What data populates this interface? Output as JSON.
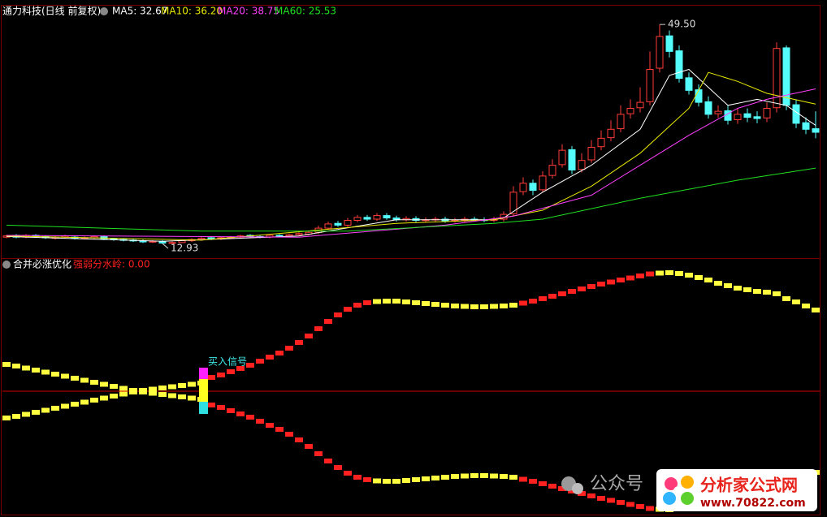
{
  "chart_data": [
    {
      "type": "candlestick",
      "title": "通力科技(日线 前复权)",
      "xlim": [
        -0.5,
        83.5
      ],
      "ylim": [
        10.5,
        52.5
      ],
      "up_color": "#ff3c3c",
      "down_color": "#54fcfc",
      "open": [
        14.0,
        14.3,
        14.0,
        14.3,
        14.1,
        13.8,
        14.0,
        14.0,
        13.8,
        13.9,
        14.1,
        13.7,
        13.6,
        13.5,
        13.4,
        13.2,
        13.3,
        13.0,
        13.1,
        13.4,
        13.6,
        13.9,
        13.7,
        13.9,
        14.0,
        14.3,
        14.1,
        14.0,
        14.3,
        14.2,
        14.4,
        14.5,
        14.8,
        15.5,
        16.3,
        16.0,
        16.8,
        17.3,
        17.0,
        17.6,
        17.2,
        16.9,
        17.1,
        16.8,
        16.9,
        17.0,
        16.7,
        16.8,
        17.0,
        16.9,
        16.8,
        17.0,
        17.9,
        21.6,
        23.0,
        21.9,
        24.3,
        26.1,
        28.6,
        25.3,
        26.9,
        29.1,
        30.6,
        32.1,
        34.6,
        35.6,
        36.6,
        42.2,
        47.6,
        45.1,
        40.6,
        38.6,
        36.6,
        34.6,
        35.1,
        33.6,
        34.6,
        34.1,
        33.9,
        35.6,
        45.6,
        36.1,
        33.1,
        32.1
      ],
      "high": [
        14.4,
        14.5,
        14.5,
        14.5,
        14.3,
        14.2,
        14.4,
        14.2,
        14.1,
        14.3,
        14.3,
        13.9,
        13.8,
        13.7,
        13.6,
        13.5,
        13.5,
        13.3,
        13.6,
        13.8,
        14.0,
        14.1,
        14.1,
        14.2,
        14.4,
        14.5,
        14.3,
        14.5,
        14.5,
        14.6,
        14.8,
        15.0,
        15.9,
        16.6,
        16.7,
        17.2,
        17.7,
        17.7,
        18.0,
        18.0,
        17.6,
        17.5,
        17.5,
        17.3,
        17.4,
        17.4,
        17.2,
        17.4,
        17.4,
        17.3,
        17.4,
        18.3,
        22.5,
        24.0,
        23.6,
        25.0,
        27.0,
        29.5,
        29.2,
        28.0,
        30.2,
        31.8,
        33.5,
        36.0,
        37.0,
        39.0,
        45.0,
        49.5,
        48.5,
        46.0,
        41.5,
        39.5,
        37.5,
        36.0,
        36.0,
        35.5,
        35.5,
        35.0,
        36.5,
        46.5,
        46.0,
        37.0,
        34.0,
        35.0
      ],
      "low": [
        13.8,
        13.8,
        13.8,
        13.9,
        13.7,
        13.6,
        13.8,
        13.6,
        13.6,
        13.7,
        13.5,
        13.4,
        13.3,
        13.2,
        13.0,
        13.0,
        12.93,
        12.95,
        13.0,
        13.2,
        13.4,
        13.5,
        13.5,
        13.7,
        13.8,
        13.9,
        13.8,
        13.8,
        14.0,
        14.0,
        14.2,
        14.3,
        14.5,
        15.2,
        15.7,
        15.7,
        16.5,
        16.7,
        16.7,
        16.9,
        16.6,
        16.6,
        16.5,
        16.5,
        16.6,
        16.4,
        16.4,
        16.5,
        16.6,
        16.5,
        16.5,
        16.6,
        17.5,
        21.0,
        21.0,
        21.5,
        23.8,
        25.6,
        24.5,
        24.8,
        26.4,
        28.5,
        30.0,
        31.5,
        33.8,
        34.8,
        36.0,
        41.5,
        44.0,
        39.8,
        37.8,
        35.8,
        33.8,
        33.9,
        32.8,
        32.9,
        33.2,
        33.0,
        33.2,
        34.8,
        35.2,
        32.2,
        31.2,
        30.5
      ],
      "close": [
        14.2,
        14.0,
        14.3,
        14.1,
        13.9,
        14.0,
        14.2,
        13.8,
        13.9,
        14.1,
        13.7,
        13.6,
        13.5,
        13.4,
        13.2,
        13.3,
        13.0,
        13.1,
        13.4,
        13.6,
        13.8,
        13.7,
        13.9,
        14.0,
        14.2,
        14.1,
        14.0,
        14.3,
        14.2,
        14.4,
        14.6,
        14.8,
        15.5,
        16.2,
        16.0,
        16.8,
        17.3,
        17.0,
        17.6,
        17.2,
        16.9,
        17.1,
        16.8,
        16.9,
        17.0,
        16.7,
        16.8,
        17.0,
        16.9,
        16.8,
        17.0,
        17.8,
        21.5,
        23.0,
        21.8,
        24.2,
        26.0,
        28.5,
        25.2,
        26.8,
        29.0,
        30.5,
        32.0,
        34.5,
        35.5,
        36.5,
        42.0,
        47.5,
        45.0,
        40.5,
        38.5,
        36.5,
        34.5,
        35.0,
        33.5,
        34.5,
        34.0,
        33.8,
        35.5,
        45.5,
        36.0,
        33.0,
        32.0,
        31.5
      ],
      "series": [
        {
          "legend_label": "MA5: 32.67",
          "color": "#ffffff",
          "x": [
            0,
            16,
            30,
            40,
            50,
            51,
            55,
            60,
            65,
            67,
            68,
            70,
            74,
            77,
            80,
            83
          ],
          "values": [
            14.1,
            13.3,
            14.2,
            16.9,
            16.9,
            17.2,
            21.5,
            26.0,
            32.0,
            38.0,
            41.0,
            42.0,
            36.0,
            37.0,
            36.0,
            32.67
          ]
        },
        {
          "legend_label": "MA10: 36.20",
          "color": "#e8e800",
          "x": [
            0,
            20,
            40,
            50,
            55,
            60,
            65,
            70,
            72,
            75,
            78,
            83
          ],
          "values": [
            14.2,
            13.5,
            16.3,
            16.9,
            18.5,
            22.5,
            28.0,
            35.5,
            41.5,
            40.0,
            38.0,
            36.2
          ]
        },
        {
          "legend_label": "MA20: 38.75",
          "color": "#ff40ff",
          "x": [
            0,
            30,
            45,
            52,
            60,
            65,
            70,
            75,
            78,
            83
          ],
          "values": [
            14.3,
            14.0,
            16.0,
            17.5,
            21.0,
            26.0,
            31.0,
            35.5,
            37.0,
            38.75
          ]
        },
        {
          "legend_label": "MA60: 25.53",
          "color": "#20e020",
          "x": [
            0,
            20,
            35,
            50,
            55,
            65,
            75,
            83
          ],
          "values": [
            16.0,
            15.0,
            15.0,
            16.3,
            17.0,
            20.5,
            23.5,
            25.53
          ]
        }
      ],
      "annotations": [
        {
          "label": "49.50",
          "value": 49.5,
          "x": 67
        },
        {
          "label": "12.93",
          "value": 12.93,
          "x": 16
        }
      ]
    },
    {
      "type": "indicator",
      "title": "合并必涨优化",
      "threshold": {
        "label": "强弱分水岭: 0.00",
        "value": 0,
        "color": "#d00000"
      },
      "xlim": [
        -0.5,
        83.5
      ],
      "ylim": [
        -153,
        162
      ],
      "rise_color": "#ff2020",
      "flat_color": "#ffff40",
      "buy_signal": {
        "label": "买入信号",
        "x": 20
      },
      "series": [
        {
          "values": [
            -33,
            -31,
            -28.5,
            -26,
            -23.5,
            -21,
            -18.5,
            -16,
            -13.5,
            -11,
            -8.5,
            -6,
            -3.5,
            -1,
            1,
            2.5,
            4,
            5.5,
            7,
            8.5,
            10,
            17,
            20,
            24,
            28,
            32,
            37,
            42,
            47,
            53,
            60,
            68,
            77,
            86,
            94,
            101,
            106,
            109,
            110.5,
            111,
            111,
            110,
            109,
            108,
            107,
            106,
            105,
            104.5,
            104,
            104,
            104.5,
            105,
            106,
            108.5,
            111,
            114,
            117,
            120,
            123,
            126,
            129,
            132,
            134.5,
            137,
            139.5,
            142,
            144.5,
            145.5,
            146,
            145,
            143,
            140,
            137,
            133,
            130,
            127,
            125,
            123,
            122,
            120,
            114,
            110,
            105,
            100
          ]
        },
        {
          "values": [
            33,
            31,
            28.5,
            26,
            23.5,
            21,
            18.5,
            16,
            13.5,
            11,
            8.5,
            6,
            3.5,
            1,
            -1,
            -2.5,
            -4,
            -5.5,
            -7,
            -8.5,
            -10,
            -17,
            -20,
            -24,
            -28,
            -32,
            -37,
            -42,
            -47,
            -53,
            -60,
            -68,
            -77,
            -86,
            -94,
            -101,
            -106,
            -109,
            -110.5,
            -111,
            -111,
            -110,
            -109,
            -108,
            -107,
            -106,
            -105,
            -104.5,
            -104,
            -104,
            -104.5,
            -105,
            -106,
            -108.5,
            -111,
            -114,
            -117,
            -120,
            -123,
            -126,
            -129,
            -132,
            -134.5,
            -137,
            -139.5,
            -142,
            -144.5,
            -145.5,
            -146,
            -145,
            -143,
            -140,
            -137,
            -133,
            -130,
            -127,
            -125,
            -123,
            -122,
            -120,
            -114,
            -110,
            -105,
            -100
          ]
        }
      ]
    }
  ],
  "watermark": {
    "account": "公众号",
    "site_name": "分析家公式网",
    "site_url": "www.70822.com"
  }
}
